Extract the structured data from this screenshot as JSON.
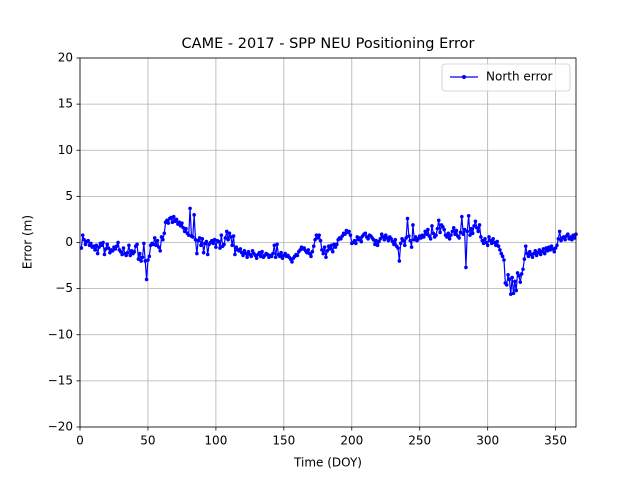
{
  "chart_data": {
    "type": "line",
    "title": "CAME - 2017 - SPP NEU Positioning Error",
    "xlabel": "Time (DOY)",
    "ylabel": "Error (m)",
    "xlim": [
      0,
      365
    ],
    "ylim": [
      -20,
      20
    ],
    "xticks": [
      0,
      50,
      100,
      150,
      200,
      250,
      300,
      350
    ],
    "yticks": [
      {
        "value": -20,
        "label": "−20"
      },
      {
        "value": -15,
        "label": "−15"
      },
      {
        "value": -10,
        "label": "−10"
      },
      {
        "value": -5,
        "label": "−5"
      },
      0,
      5,
      10,
      15,
      20
    ],
    "grid": true,
    "legend": "upper right",
    "x": [
      1,
      2,
      3,
      4,
      5,
      6,
      7,
      8,
      9,
      10,
      11,
      12,
      13,
      14,
      15,
      16,
      17,
      18,
      19,
      20,
      21,
      22,
      23,
      24,
      25,
      26,
      27,
      28,
      29,
      30,
      31,
      32,
      33,
      34,
      35,
      36,
      37,
      38,
      39,
      40,
      41,
      42,
      43,
      44,
      45,
      46,
      47,
      48,
      49,
      50,
      51,
      52,
      53,
      54,
      55,
      56,
      57,
      58,
      59,
      60,
      61,
      62,
      63,
      64,
      65,
      66,
      67,
      68,
      69,
      70,
      71,
      72,
      73,
      74,
      75,
      76,
      77,
      78,
      79,
      80,
      81,
      82,
      83,
      84,
      85,
      86,
      87,
      88,
      89,
      90,
      91,
      92,
      93,
      94,
      95,
      96,
      97,
      98,
      99,
      100,
      101,
      102,
      103,
      104,
      105,
      106,
      107,
      108,
      109,
      110,
      111,
      112,
      113,
      114,
      115,
      116,
      117,
      118,
      119,
      120,
      121,
      122,
      123,
      124,
      125,
      126,
      127,
      128,
      129,
      130,
      131,
      132,
      133,
      134,
      135,
      136,
      137,
      138,
      139,
      140,
      141,
      142,
      143,
      144,
      145,
      146,
      147,
      148,
      149,
      150,
      151,
      152,
      153,
      154,
      155,
      156,
      157,
      158,
      159,
      160,
      161,
      162,
      163,
      164,
      165,
      166,
      167,
      168,
      169,
      170,
      171,
      172,
      173,
      174,
      175,
      176,
      177,
      178,
      179,
      180,
      181,
      182,
      183,
      184,
      185,
      186,
      187,
      188,
      189,
      190,
      191,
      192,
      193,
      194,
      195,
      196,
      197,
      198,
      199,
      200,
      201,
      202,
      203,
      204,
      205,
      206,
      207,
      208,
      209,
      210,
      211,
      212,
      213,
      214,
      215,
      216,
      217,
      218,
      219,
      220,
      221,
      222,
      223,
      224,
      225,
      226,
      227,
      228,
      229,
      230,
      231,
      232,
      233,
      234,
      235,
      236,
      237,
      238,
      239,
      240,
      241,
      242,
      243,
      244,
      245,
      246,
      247,
      248,
      249,
      250,
      251,
      252,
      253,
      254,
      255,
      256,
      257,
      258,
      259,
      260,
      261,
      262,
      263,
      264,
      265,
      266,
      267,
      268,
      269,
      270,
      271,
      272,
      273,
      274,
      275,
      276,
      277,
      278,
      279,
      280,
      281,
      282,
      283,
      284,
      285,
      286,
      287,
      288,
      289,
      290,
      291,
      292,
      293,
      294,
      295,
      296,
      297,
      298,
      299,
      300,
      301,
      302,
      303,
      304,
      305,
      306,
      307,
      308,
      309,
      310,
      311,
      312,
      313,
      314,
      315,
      316,
      317,
      318,
      319,
      320,
      321,
      322,
      323,
      324,
      325,
      326,
      327,
      328,
      329,
      330,
      331,
      332,
      333,
      334,
      335,
      336,
      337,
      338,
      339,
      340,
      341,
      342,
      343,
      344,
      345,
      346,
      347,
      348,
      349,
      350,
      351,
      352,
      353,
      354,
      355,
      356,
      357,
      358,
      359,
      360,
      361,
      362,
      363,
      364,
      365
    ],
    "series": [
      {
        "name": "North error",
        "color": "#0000ff",
        "values": [
          -0.6,
          0.8,
          0.3,
          -0.2,
          0.1,
          0.2,
          -0.3,
          -0.1,
          -0.5,
          -0.4,
          -0.8,
          -0.3,
          -1.2,
          -0.5,
          -0.1,
          -0.3,
          0.0,
          -1.3,
          -0.7,
          -0.2,
          -0.6,
          -1.1,
          -0.8,
          -0.9,
          -0.5,
          -0.7,
          -0.4,
          0.0,
          -0.8,
          -1.0,
          -1.3,
          -0.6,
          -1.2,
          -1.4,
          -1.1,
          -0.3,
          -1.4,
          -0.9,
          -1.2,
          -1.0,
          -0.4,
          -0.2,
          -1.8,
          -1.2,
          -2.0,
          -1.6,
          -0.1,
          -2.0,
          -4.0,
          -1.9,
          -1.5,
          -0.3,
          -0.1,
          -0.2,
          0.5,
          -0.3,
          0.2,
          -0.5,
          -0.9,
          0.6,
          0.3,
          1.0,
          2.2,
          2.4,
          2.1,
          2.6,
          2.7,
          2.2,
          2.8,
          2.3,
          2.5,
          2.0,
          2.2,
          1.8,
          2.1,
          1.6,
          1.2,
          1.5,
          1.0,
          0.8,
          3.7,
          0.7,
          0.6,
          3.0,
          0.3,
          -1.2,
          0.2,
          0.5,
          -0.3,
          0.4,
          -1.1,
          -0.1,
          0.1,
          -1.3,
          -0.2,
          0.0,
          0.2,
          -0.1,
          0.3,
          -0.5,
          0.2,
          0.1,
          -0.6,
          0.8,
          -0.4,
          -0.2,
          0.5,
          1.2,
          0.3,
          1.0,
          0.6,
          -0.3,
          0.7,
          -1.3,
          -0.5,
          -0.8,
          -0.9,
          -0.7,
          -1.1,
          -1.4,
          -0.9,
          -1.2,
          -1.6,
          -1.0,
          -1.3,
          -1.5,
          -0.9,
          -1.2,
          -1.4,
          -1.7,
          -1.3,
          -1.1,
          -1.5,
          -1.0,
          -1.6,
          -1.4,
          -1.2,
          -1.3,
          -1.6,
          -1.4,
          -1.5,
          -1.2,
          -0.3,
          -1.6,
          -0.2,
          -1.3,
          -1.5,
          -1.1,
          -1.7,
          -1.4,
          -1.2,
          -1.5,
          -1.4,
          -1.6,
          -1.8,
          -2.1,
          -1.7,
          -1.5,
          -1.3,
          -1.4,
          -1.0,
          -0.8,
          -0.5,
          -0.7,
          -0.6,
          -0.9,
          -1.1,
          -0.8,
          -1.2,
          -1.5,
          -1.0,
          -0.4,
          0.3,
          0.8,
          0.5,
          0.8,
          0.2,
          -0.8,
          -1.2,
          -0.5,
          -1.6,
          -0.9,
          -0.4,
          -0.7,
          -0.3,
          -1.0,
          -0.2,
          -0.5,
          -0.2,
          0.3,
          0.5,
          0.4,
          0.7,
          1.0,
          0.9,
          1.3,
          1.1,
          1.2,
          0.8,
          -0.1,
          0.0,
          0.2,
          -0.1,
          0.6,
          0.3,
          0.5,
          0.1,
          0.7,
          0.9,
          1.0,
          0.6,
          0.4,
          0.8,
          0.7,
          0.5,
          0.3,
          -0.2,
          0.2,
          -0.3,
          0.1,
          0.4,
          0.9,
          0.6,
          0.3,
          0.8,
          0.5,
          0.2,
          0.6,
          0.4,
          0.1,
          -0.2,
          0.3,
          -0.4,
          -0.6,
          -2.0,
          -0.1,
          0.4,
          0.2,
          -0.3,
          0.5,
          2.6,
          0.7,
          0.2,
          -0.5,
          1.9,
          0.3,
          0.6,
          0.2,
          0.4,
          0.7,
          0.5,
          0.8,
          0.6,
          1.2,
          0.9,
          1.4,
          0.7,
          0.4,
          1.8,
          1.0,
          0.6,
          0.8,
          1.5,
          2.4,
          1.1,
          1.9,
          1.7,
          1.4,
          0.8,
          0.6,
          1.0,
          0.4,
          0.8,
          1.2,
          1.6,
          0.9,
          1.3,
          0.7,
          0.5,
          1.1,
          2.8,
          0.9,
          1.4,
          -2.7,
          1.2,
          2.9,
          0.8,
          1.5,
          1.0,
          1.8,
          2.3,
          1.6,
          1.2,
          1.9,
          0.6,
          0.2,
          -0.1,
          0.4,
          0.0,
          -0.3,
          0.6,
          0.2,
          -0.1,
          0.4,
          0.0,
          -0.3,
          0.1,
          -0.4,
          -0.8,
          -1.2,
          -1.5,
          -1.9,
          -4.4,
          -4.6,
          -3.5,
          -4.0,
          -5.6,
          -3.8,
          -5.5,
          -4.2,
          -5.2,
          -3.3,
          -3.6,
          -4.3,
          -3.4,
          -2.9,
          -1.8,
          -0.4,
          -1.2,
          -1.5,
          -1.0,
          -1.3,
          -1.6,
          -1.2,
          -0.9,
          -1.4,
          -1.1,
          -0.8,
          -1.3,
          -1.0,
          -0.7,
          -1.2,
          -0.6,
          -0.9,
          -0.5,
          -0.8,
          -0.4,
          -0.7,
          -1.0,
          -0.6,
          -0.3,
          0.4,
          1.2,
          0.2,
          0.5,
          0.6,
          0.3,
          0.7,
          0.9,
          0.4,
          0.6,
          0.3,
          0.8,
          0.5,
          0.9
        ]
      }
    ]
  }
}
